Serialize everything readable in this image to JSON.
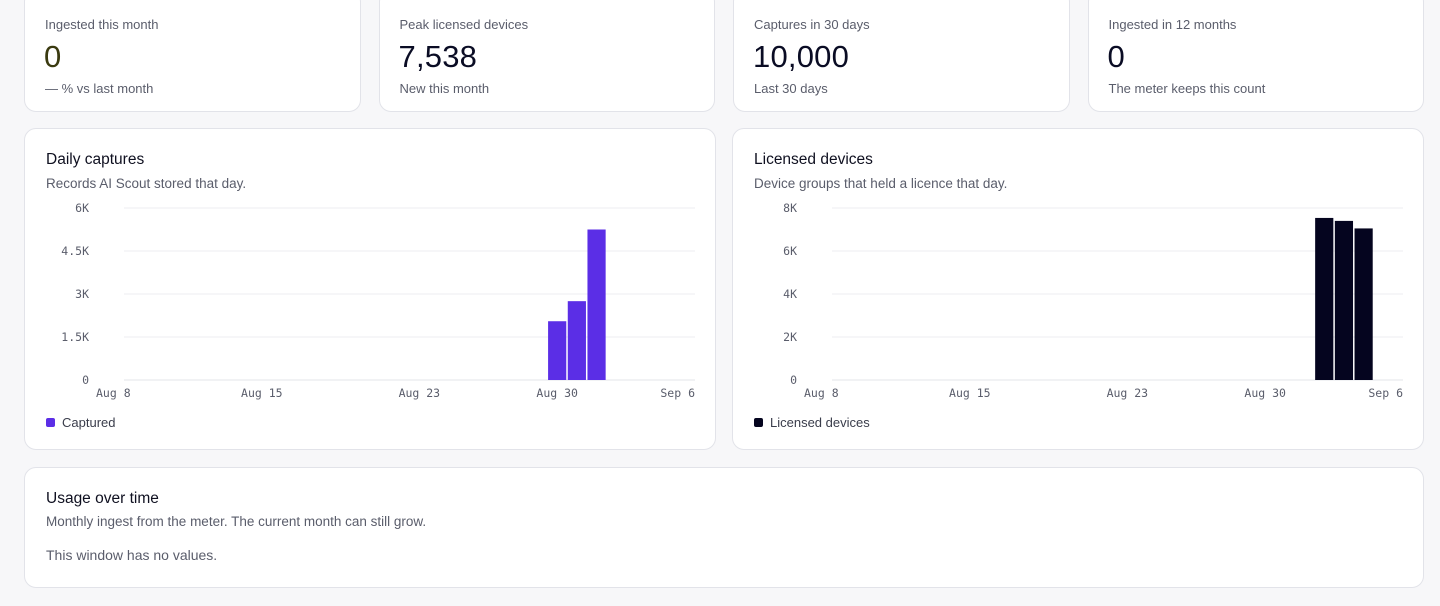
{
  "stats": [
    {
      "label": "Ingested this month",
      "value": "0",
      "sub": "— % vs last month"
    },
    {
      "label": "Peak licensed devices",
      "value": "7,538",
      "sub": "New this month"
    },
    {
      "label": "Captures in 30 days",
      "value": "10,000",
      "sub": "Last 30 days"
    },
    {
      "label": "Ingested in 12 months",
      "value": "0",
      "sub": "The meter keeps this count"
    }
  ],
  "daily": {
    "title": "Daily captures",
    "subtitle": "Records AI Scout stored that day.",
    "legend": "Captured",
    "color": "#5b2ee6"
  },
  "licensed": {
    "title": "Licensed devices",
    "subtitle": "Device groups that held a licence that day.",
    "legend": "Licensed devices",
    "color": "#05051f"
  },
  "usage": {
    "title": "Usage over time",
    "subtitle": "Monthly ingest from the meter. The current month can still grow.",
    "empty": "This window has no values."
  },
  "chart_data": [
    {
      "type": "bar",
      "title": "Daily captures",
      "x_tick_labels": [
        "Aug 8",
        "Aug 15",
        "Aug 23",
        "Aug 30",
        "Sep 6"
      ],
      "y_tick_labels": [
        "0",
        "1.5K",
        "3K",
        "4.5K",
        "6K"
      ],
      "ylim": [
        0,
        6000
      ],
      "xlim": [
        "Aug 8",
        "Sep 6"
      ],
      "grid": true,
      "legend_position": "bottom-left",
      "series": [
        {
          "name": "Captured",
          "x": [
            "Aug 28",
            "Aug 29",
            "Aug 30",
            "Aug 31",
            "Sep 1",
            "Sep 2"
          ],
          "values": [
            0,
            0,
            2050,
            2750,
            5250,
            0
          ]
        }
      ]
    },
    {
      "type": "bar",
      "title": "Licensed devices",
      "x_tick_labels": [
        "Aug 8",
        "Aug 15",
        "Aug 23",
        "Aug 30",
        "Sep 6"
      ],
      "y_tick_labels": [
        "0",
        "2K",
        "4K",
        "6K",
        "8K"
      ],
      "ylim": [
        0,
        8000
      ],
      "xlim": [
        "Aug 8",
        "Sep 6"
      ],
      "grid": true,
      "legend_position": "bottom-left",
      "series": [
        {
          "name": "Licensed devices",
          "x": [
            "Sep 2",
            "Sep 3",
            "Sep 4"
          ],
          "values": [
            7538,
            7400,
            7050
          ]
        }
      ]
    }
  ]
}
